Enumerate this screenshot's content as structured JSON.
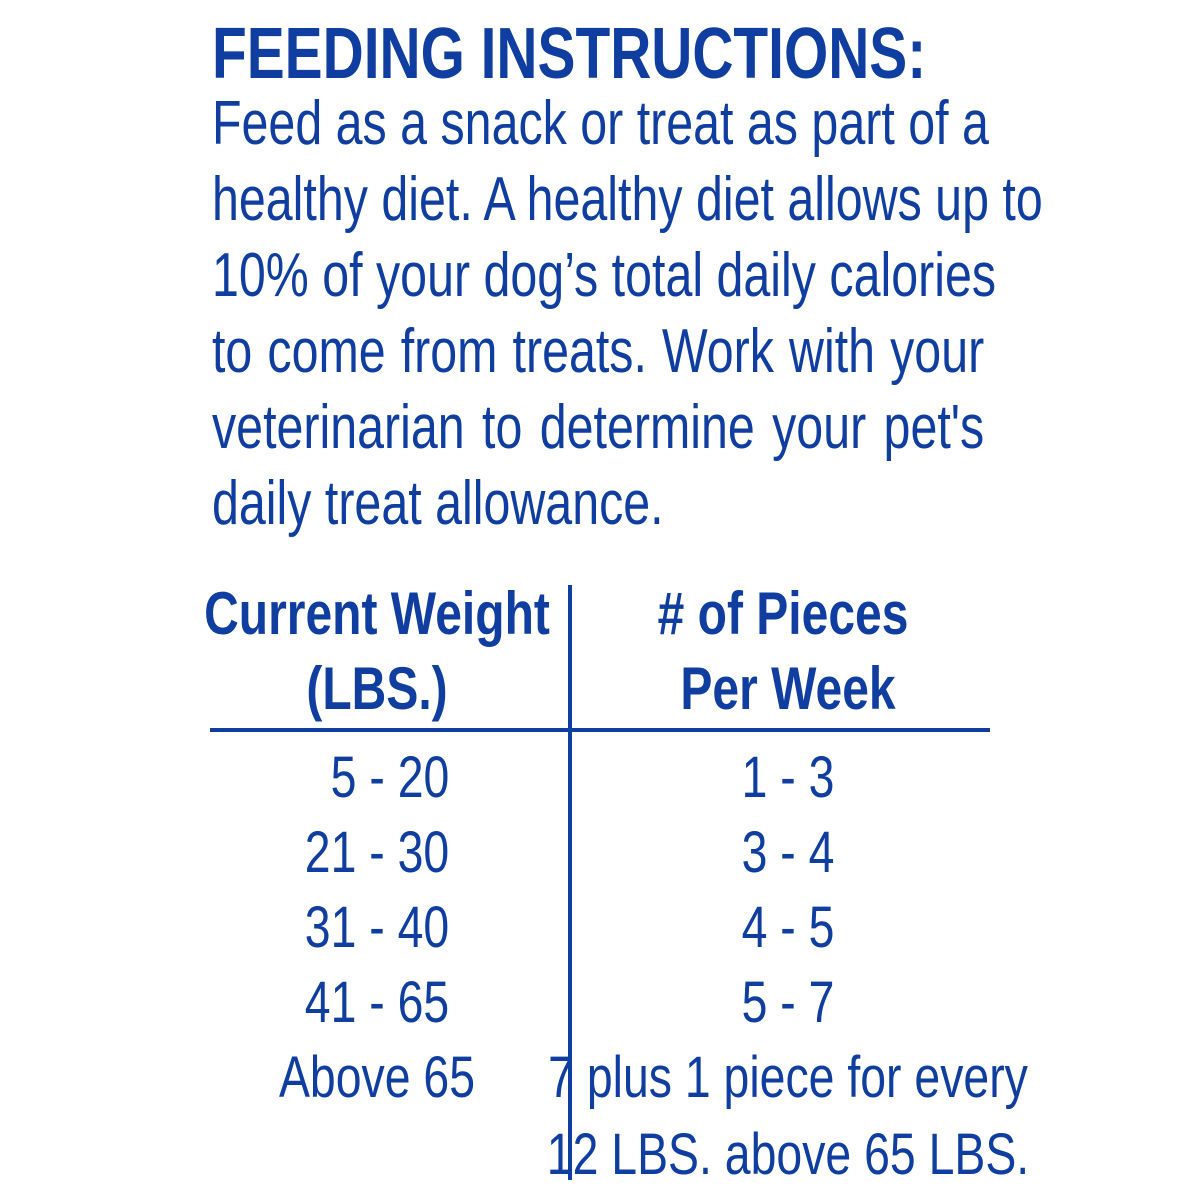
{
  "title": "FEEDING INSTRUCTIONS:",
  "body_lines": [
    "Feed as a snack or treat as part of a",
    "healthy diet. A healthy diet allows up to",
    "10% of your dog’s total daily calories",
    "to come from treats. Work with your",
    "veterinarian to determine your pet's",
    "daily treat allowance."
  ],
  "table": {
    "headers": [
      [
        "Current Weight",
        "(LBS.)"
      ],
      [
        "# of Pieces",
        "Per Week"
      ]
    ],
    "rows": [
      [
        "5 - 20",
        "1 - 3"
      ],
      [
        "21 - 30",
        "3 - 4"
      ],
      [
        "31 - 40",
        "4 - 5"
      ],
      [
        "41 - 65",
        "5 - 7"
      ],
      [
        "Above 65",
        "7 plus 1 piece for every"
      ],
      [
        "",
        "12 LBS. above 65 LBS."
      ]
    ]
  },
  "colors": {
    "text": "#0f3ea0",
    "background": "#ffffff"
  }
}
